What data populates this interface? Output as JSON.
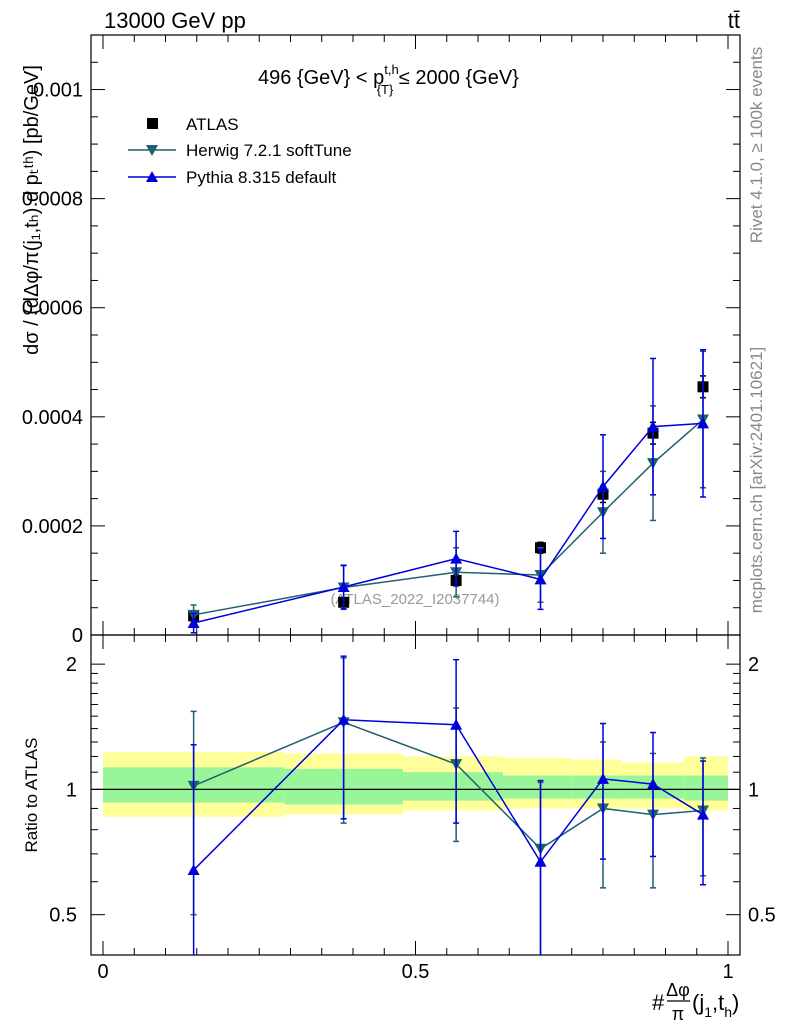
{
  "header": {
    "left": "13000 GeV pp",
    "right": "tt̄"
  },
  "side_labels": {
    "rivet": "Rivet 4.1.0, ≥ 100k events",
    "mcplots": "mcplots.cern.ch [arXiv:2401.10621]"
  },
  "colors": {
    "atlas": "#000000",
    "herwig": "#1f5f6f",
    "pythia": "#0000dd",
    "band_inner": "#99f599",
    "band_outer": "#ffff99"
  },
  "chart_data": [
    {
      "type": "scatter",
      "title_parts": {
        "prefix": "496 {GeV} < p",
        "sup": "t,h",
        "sub": "{T}",
        "suffix": " ≤ 2000 {GeV}"
      },
      "ylabel": "dσ / (dΔφ/π(j₁,tₕ) d pₜᵗʰ) [pb/GeV]",
      "watermark": "(ATLAS_2022_I2037744)",
      "xlim": [
        0,
        1
      ],
      "ylim": [
        0,
        0.0011
      ],
      "y_ticks": [
        "0",
        "0.0002",
        "0.0004",
        "0.0006",
        "0.0008",
        "0.001"
      ],
      "y_tick_values": [
        0,
        0.0002,
        0.0004,
        0.0006,
        0.0008,
        0.001
      ],
      "legend": [
        "ATLAS",
        "Herwig 7.2.1 softTune",
        "Pythia 8.315 default"
      ],
      "series": [
        {
          "name": "ATLAS",
          "marker": "square",
          "x": [
            0.145,
            0.385,
            0.565,
            0.7,
            0.8,
            0.88,
            0.96
          ],
          "y": [
            3.5e-05,
            6e-05,
            0.0001,
            0.00016,
            0.000258,
            0.00037,
            0.000455
          ],
          "err": [
            5e-06,
            8e-06,
            1e-05,
            1e-05,
            1.5e-05,
            2e-05,
            2e-05
          ]
        },
        {
          "name": "Herwig 7.2.1 softTune",
          "marker": "triangle-down",
          "x": [
            0.145,
            0.385,
            0.565,
            0.7,
            0.8,
            0.88,
            0.96
          ],
          "y": [
            3.7e-05,
            8.7e-05,
            0.000115,
            0.00011,
            0.000225,
            0.000315,
            0.000395
          ],
          "err": [
            1.8e-05,
            4e-05,
            4.5e-05,
            5e-05,
            7.5e-05,
            0.000105,
            0.000125
          ]
        },
        {
          "name": "Pythia 8.315 default",
          "marker": "triangle-up",
          "x": [
            0.145,
            0.385,
            0.565,
            0.7,
            0.8,
            0.88,
            0.96
          ],
          "y": [
            2.2e-05,
            8.8e-05,
            0.00014,
            0.000102,
            0.000272,
            0.000382,
            0.000388
          ],
          "err": [
            1.8e-05,
            4e-05,
            5e-05,
            5.5e-05,
            9.5e-05,
            0.000125,
            0.000135
          ]
        }
      ]
    },
    {
      "type": "scatter",
      "ylabel": "Ratio to ATLAS",
      "xlabel_prefix": "#",
      "xlabel_frac_num": "Δφ",
      "xlabel_frac_den": "π",
      "xlabel_suffix": "(j",
      "xlabel_sub1": "1",
      "xlabel_mid": ",t",
      "xlabel_sub2": "h",
      "xlabel_end": ")",
      "xlim": [
        0,
        1
      ],
      "ylim": [
        0.4,
        2.35
      ],
      "y_ticks": [
        "0.5",
        "1",
        "2"
      ],
      "y_tick_values": [
        0.5,
        1,
        2
      ],
      "x_ticks": [
        "0",
        "0.5",
        "1"
      ],
      "x_tick_values": [
        0,
        0.5,
        1
      ],
      "bands": [
        {
          "x0": 0.0,
          "x1": 0.29,
          "inner": [
            0.93,
            1.13
          ],
          "outer": [
            0.86,
            1.23
          ]
        },
        {
          "x0": 0.29,
          "x1": 0.48,
          "inner": [
            0.92,
            1.12
          ],
          "outer": [
            0.87,
            1.22
          ]
        },
        {
          "x0": 0.48,
          "x1": 0.64,
          "inner": [
            0.94,
            1.1
          ],
          "outer": [
            0.89,
            1.2
          ]
        },
        {
          "x0": 0.64,
          "x1": 0.75,
          "inner": [
            0.95,
            1.08
          ],
          "outer": [
            0.9,
            1.19
          ]
        },
        {
          "x0": 0.75,
          "x1": 0.83,
          "inner": [
            0.95,
            1.08
          ],
          "outer": [
            0.9,
            1.18
          ]
        },
        {
          "x0": 0.83,
          "x1": 0.93,
          "inner": [
            0.95,
            1.08
          ],
          "outer": [
            0.9,
            1.16
          ]
        },
        {
          "x0": 0.93,
          "x1": 1.0,
          "inner": [
            0.94,
            1.08
          ],
          "outer": [
            0.89,
            1.2
          ]
        }
      ],
      "series": [
        {
          "name": "Herwig 7.2.1 softTune",
          "marker": "triangle-down",
          "x": [
            0.145,
            0.385,
            0.565,
            0.7,
            0.8,
            0.88,
            0.96
          ],
          "y": [
            1.02,
            1.45,
            1.15,
            0.72,
            0.9,
            0.87,
            0.89
          ],
          "err_lo": [
            0.52,
            0.62,
            0.4,
            0.32,
            0.32,
            0.29,
            0.27
          ],
          "err_hi": [
            0.52,
            0.62,
            0.42,
            0.32,
            0.4,
            0.35,
            0.3
          ]
        },
        {
          "name": "Pythia 8.315 default",
          "marker": "triangle-up",
          "x": [
            0.145,
            0.385,
            0.565,
            0.7,
            0.8,
            0.88,
            0.96
          ],
          "y": [
            0.64,
            1.47,
            1.43,
            0.67,
            1.06,
            1.03,
            0.87
          ],
          "err_lo": [
            0.64,
            0.62,
            0.6,
            0.6,
            0.38,
            0.34,
            0.28
          ],
          "err_hi": [
            0.64,
            0.62,
            0.62,
            0.38,
            0.38,
            0.34,
            0.3
          ]
        }
      ]
    }
  ]
}
